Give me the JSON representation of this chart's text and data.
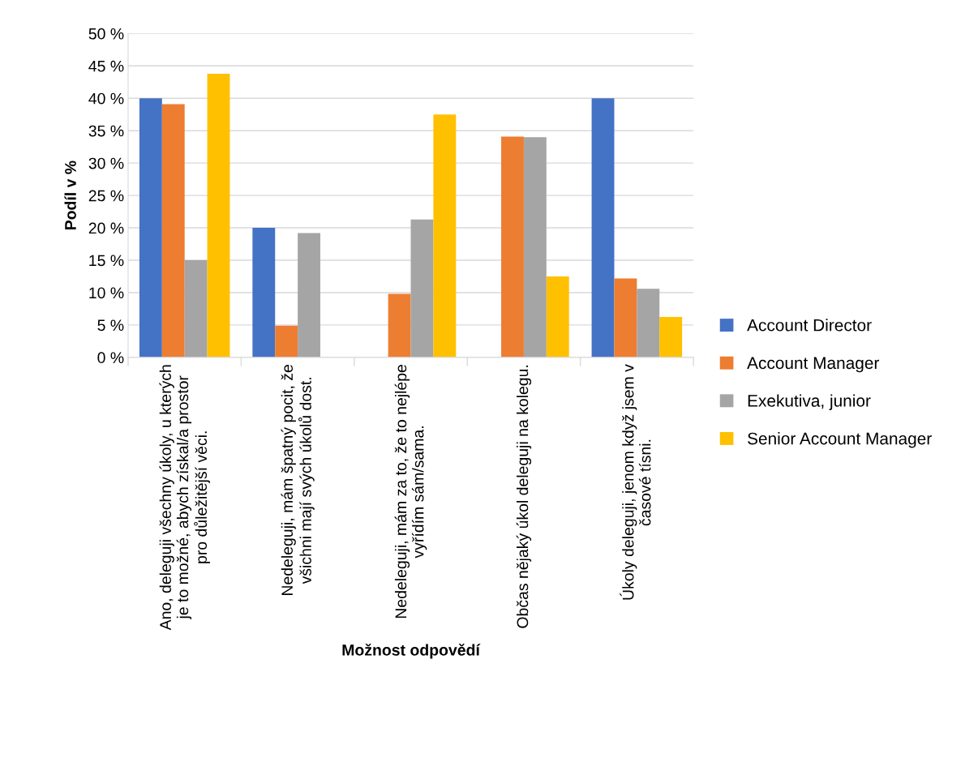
{
  "chart_data": {
    "type": "bar",
    "xlabel": "Možnost odpovědí",
    "ylabel": "Podíl v %",
    "categories": [
      "Ano, deleguji všechny úkoly, u kterých\nje to možné, abych získal/a prostor\npro důležitější věci.",
      "Nedeleguji, mám špatný pocit, že\nvšichni mají svých úkolů dost.",
      "Nedeleguji, mám za to, že to nejlépe\nvyřídím sám/sama.",
      "Občas nějaký úkol deleguji na kolegu.",
      "Úkoly deleguji, jenom když jsem v\nčasové tísni."
    ],
    "series": [
      {
        "name": "Account Director",
        "color": "#4472c4",
        "values": [
          40,
          20,
          0,
          0,
          40
        ]
      },
      {
        "name": "Account Manager",
        "color": "#ed7d31",
        "values": [
          39.1,
          4.9,
          9.8,
          34.1,
          12.2
        ]
      },
      {
        "name": "Exekutiva, junior",
        "color": "#a5a5a5",
        "values": [
          15,
          19.2,
          21.3,
          34.0,
          10.6
        ]
      },
      {
        "name": "Senior Account Manager",
        "color": "#ffc000",
        "values": [
          43.8,
          0,
          37.5,
          12.5,
          6.25
        ]
      }
    ],
    "ylim": [
      0,
      50
    ],
    "yticks": [
      {
        "value": 0,
        "label": "0 %"
      },
      {
        "value": 5,
        "label": "5 %"
      },
      {
        "value": 10,
        "label": "10 %"
      },
      {
        "value": 15,
        "label": "15 %"
      },
      {
        "value": 20,
        "label": "20 %"
      },
      {
        "value": 25,
        "label": "25 %"
      },
      {
        "value": 30,
        "label": "30 %"
      },
      {
        "value": 35,
        "label": "35 %"
      },
      {
        "value": 40,
        "label": "40 %"
      },
      {
        "value": 45,
        "label": "45 %"
      },
      {
        "value": 50,
        "label": "50 %"
      }
    ],
    "grid": "y",
    "legend": "right"
  }
}
